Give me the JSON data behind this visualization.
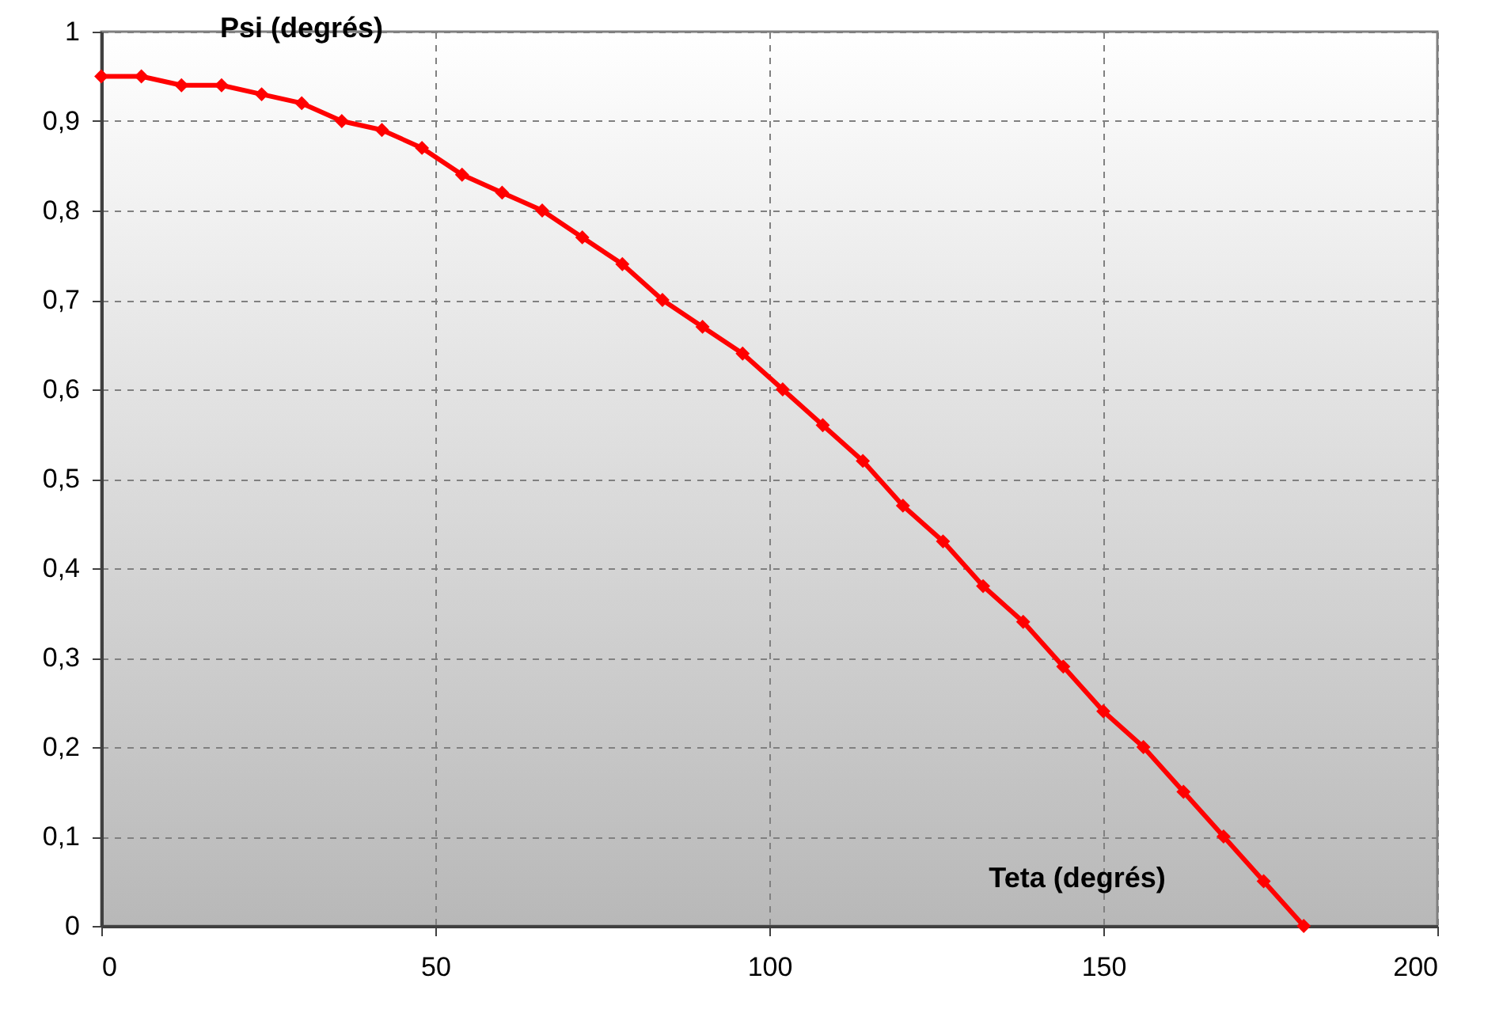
{
  "chart_data": {
    "type": "line",
    "xlabel": "Teta (degrés)",
    "ylabel": "Psi (degrés)",
    "x": [
      0,
      6,
      12,
      18,
      24,
      30,
      36,
      42,
      48,
      54,
      60,
      66,
      72,
      78,
      84,
      90,
      96,
      102,
      108,
      114,
      120,
      126,
      132,
      138,
      144,
      150,
      156,
      162,
      168,
      174,
      180
    ],
    "series": [
      {
        "color": "#ff0000",
        "values": [
          0.95,
          0.95,
          0.94,
          0.94,
          0.93,
          0.92,
          0.9,
          0.89,
          0.87,
          0.84,
          0.82,
          0.8,
          0.77,
          0.74,
          0.7,
          0.67,
          0.64,
          0.6,
          0.56,
          0.52,
          0.47,
          0.43,
          0.38,
          0.34,
          0.29,
          0.24,
          0.2,
          0.15,
          0.1,
          0.05,
          0
        ]
      }
    ],
    "xlim": [
      0,
      200
    ],
    "xticks": [
      0,
      50,
      100,
      150,
      200
    ],
    "ylim": [
      0,
      1
    ],
    "yticks": [
      {
        "value": 0,
        "label": "0"
      },
      {
        "value": 0.1,
        "label": "0,1"
      },
      {
        "value": 0.2,
        "label": "0,2"
      },
      {
        "value": 0.3,
        "label": "0,3"
      },
      {
        "value": 0.4,
        "label": "0,4"
      },
      {
        "value": 0.5,
        "label": "0,5"
      },
      {
        "value": 0.6,
        "label": "0,6"
      },
      {
        "value": 0.7,
        "label": "0,7"
      },
      {
        "value": 0.8,
        "label": "0,8"
      },
      {
        "value": 0.9,
        "label": "0,9"
      },
      {
        "value": 1,
        "label": "1"
      }
    ],
    "grid": true,
    "marker": "diamond",
    "line_style": "solid"
  }
}
